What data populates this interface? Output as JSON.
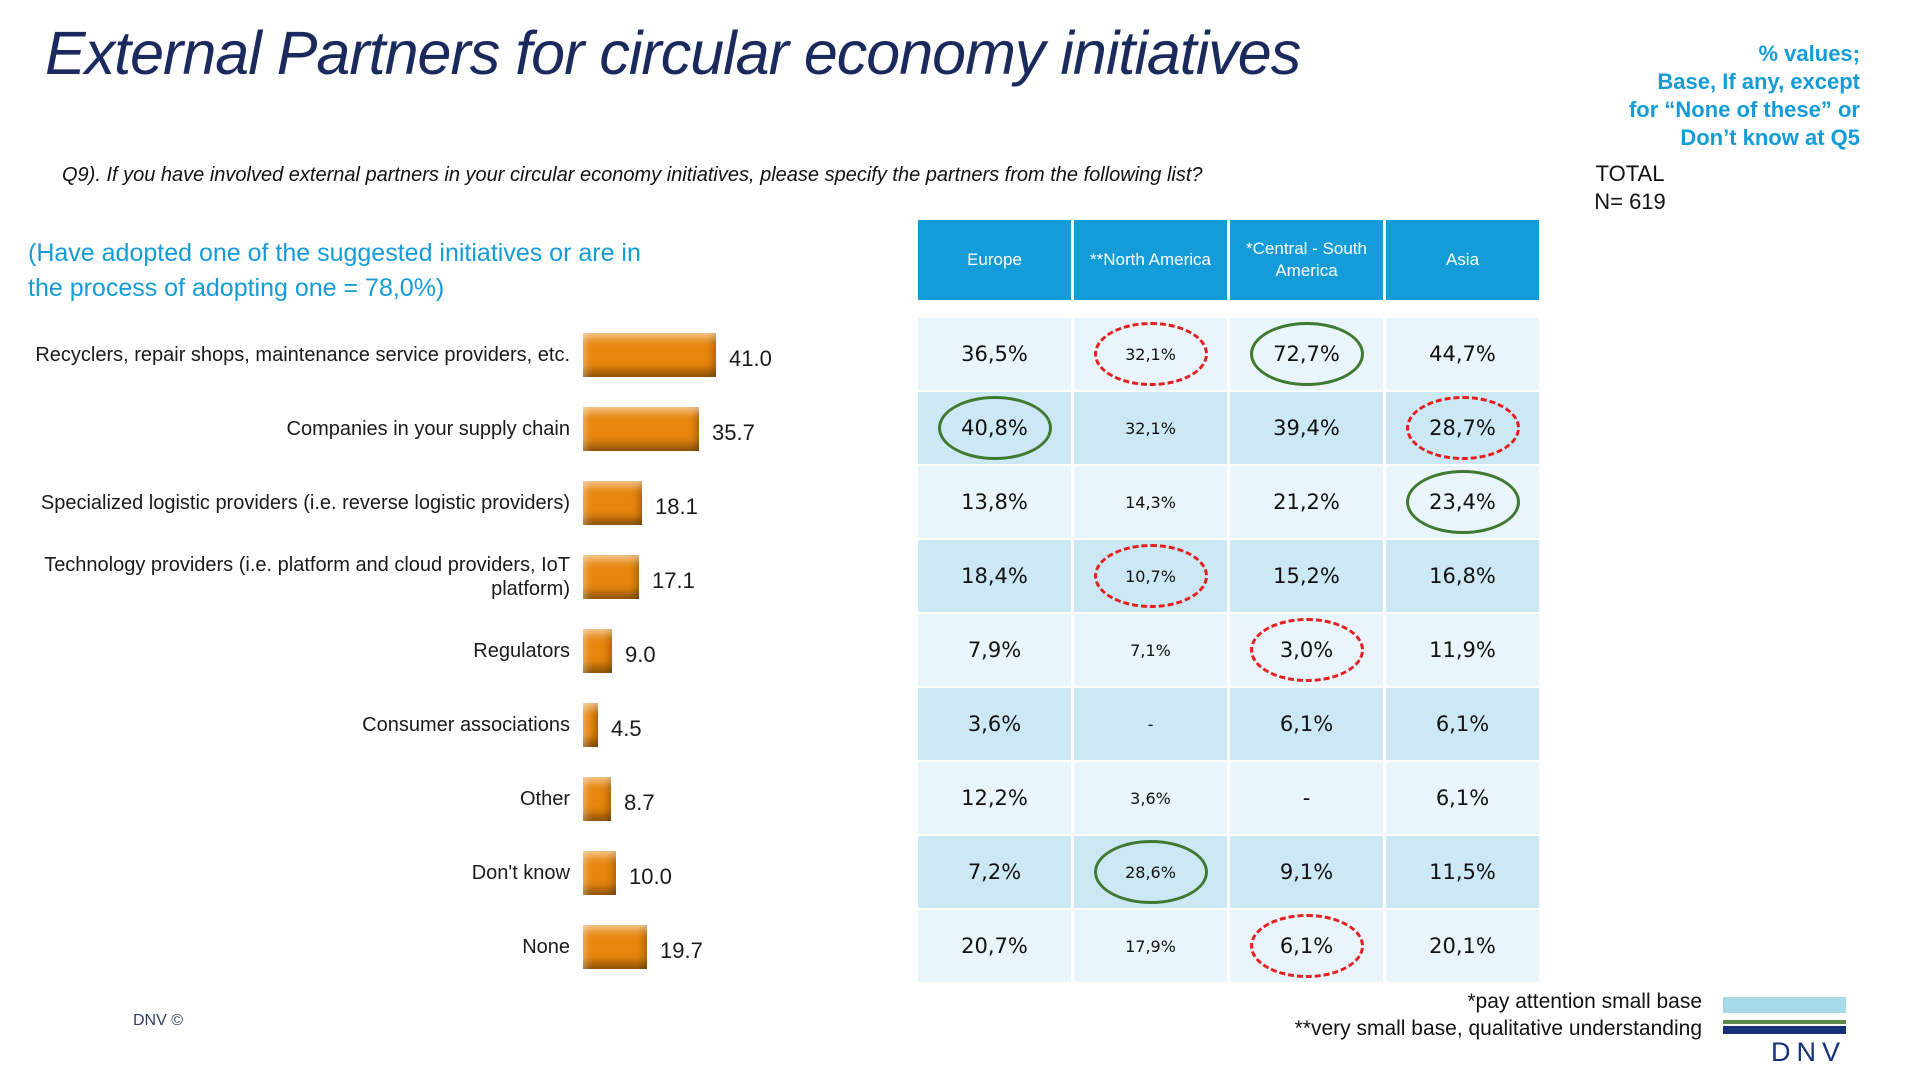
{
  "slide": {
    "title": "External Partners for circular economy initiatives",
    "note_top_right": [
      "% values;",
      "Base, If any, except",
      "for “None of these” or",
      "Don’t know at Q5"
    ],
    "total_label": "TOTAL",
    "total_n": "N= 619",
    "question": "Q9). If you have involved external partners in your circular economy initiatives, please specify the partners from the following list?",
    "subtitle_lines": [
      "(Have adopted one of the suggested initiatives or are in",
      "the process of adopting one = 78,0%)"
    ],
    "footnotes": [
      "*pay attention small base",
      "**very small base, qualitative understanding"
    ],
    "footer_left": "DNV ©",
    "logo_text": "DNV"
  },
  "chart_data": {
    "type": "bar",
    "orientation": "horizontal",
    "title": "",
    "xlabel": "",
    "ylabel": "",
    "xlim": [
      0,
      45
    ],
    "grid": false,
    "legend": "none",
    "bar_color": "#E8860D",
    "categories": [
      "Recyclers, repair shops, maintenance service providers, etc.",
      "Companies in your supply chain",
      "Specialized logistic providers (i.e. reverse logistic providers)",
      "Technology providers (i.e. platform and cloud providers, IoT platform)",
      "Regulators",
      "Consumer associations",
      "Other",
      "Don't know",
      "None"
    ],
    "values": [
      41.0,
      35.7,
      18.1,
      17.1,
      9.0,
      4.5,
      8.7,
      10.0,
      19.7
    ],
    "value_labels": [
      "41.0",
      "35.7",
      "18.1",
      "17.1",
      "9.0",
      "4.5",
      "8.7",
      "10.0",
      "19.7"
    ]
  },
  "table": {
    "columns": [
      "Europe",
      "**North America",
      "*Central - South America",
      "Asia"
    ],
    "rows": [
      {
        "cells": [
          {
            "text": "36,5%"
          },
          {
            "text": "32,1%",
            "mark": "red"
          },
          {
            "text": "72,7%",
            "mark": "green"
          },
          {
            "text": "44,7%"
          }
        ]
      },
      {
        "cells": [
          {
            "text": "40,8%",
            "mark": "green"
          },
          {
            "text": "32,1%"
          },
          {
            "text": "39,4%"
          },
          {
            "text": "28,7%",
            "mark": "red"
          }
        ]
      },
      {
        "cells": [
          {
            "text": "13,8%"
          },
          {
            "text": "14,3%"
          },
          {
            "text": "21,2%"
          },
          {
            "text": "23,4%",
            "mark": "green"
          }
        ]
      },
      {
        "cells": [
          {
            "text": "18,4%"
          },
          {
            "text": "10,7%",
            "mark": "red"
          },
          {
            "text": "15,2%"
          },
          {
            "text": "16,8%"
          }
        ]
      },
      {
        "cells": [
          {
            "text": "7,9%"
          },
          {
            "text": "7,1%"
          },
          {
            "text": "3,0%",
            "mark": "red"
          },
          {
            "text": "11,9%"
          }
        ]
      },
      {
        "cells": [
          {
            "text": "3,6%"
          },
          {
            "text": "-"
          },
          {
            "text": "6,1%"
          },
          {
            "text": "6,1%"
          }
        ]
      },
      {
        "cells": [
          {
            "text": "12,2%"
          },
          {
            "text": "3,6%"
          },
          {
            "text": "-"
          },
          {
            "text": "6,1%"
          }
        ]
      },
      {
        "cells": [
          {
            "text": "7,2%"
          },
          {
            "text": "28,6%",
            "mark": "green"
          },
          {
            "text": "9,1%"
          },
          {
            "text": "11,5%"
          }
        ]
      },
      {
        "cells": [
          {
            "text": "20,7%"
          },
          {
            "text": "17,9%"
          },
          {
            "text": "6,1%",
            "mark": "red"
          },
          {
            "text": "20,1%"
          }
        ]
      }
    ]
  },
  "colors": {
    "accent": "#149CD8",
    "navy": "#1B2A5C",
    "orange": "#E8860D",
    "green": "#3F7A30",
    "red": "#E3201F",
    "rowlight": "#E9F4FB",
    "rowdark": "#CDE8F5",
    "logoblue": "#A6D9EA",
    "logogreen": "#5C8A4A",
    "logonavy": "#16307A"
  }
}
